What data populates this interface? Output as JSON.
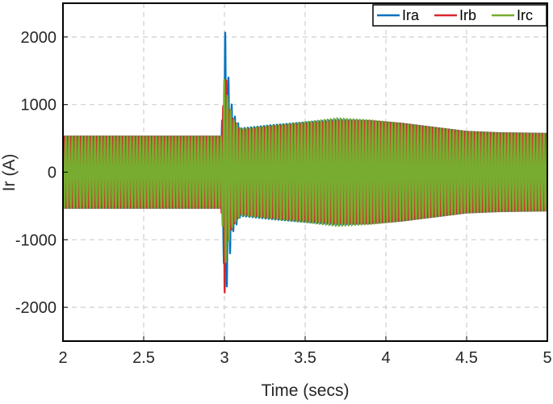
{
  "chart_data": {
    "type": "line",
    "xlabel": "Time (secs)",
    "ylabel": "Ir (A)",
    "xlim": [
      2,
      5
    ],
    "ylim": [
      -2500,
      2500
    ],
    "x_ticks": [
      2,
      2.5,
      3,
      3.5,
      4,
      4.5,
      5
    ],
    "x_tick_labels": [
      "2",
      "2.5",
      "3",
      "3.5",
      "4",
      "4.5",
      "5"
    ],
    "y_ticks": [
      -2000,
      -1000,
      0,
      1000,
      2000
    ],
    "y_tick_labels": [
      "-2000",
      "-1000",
      "0",
      "1000",
      "2000"
    ],
    "grid": true,
    "legend_position": "top-right",
    "legend_orientation": "horizontal",
    "frequency_hz": 50,
    "series": [
      {
        "name": "Ira",
        "color": "#0072BD",
        "phase_deg": 0,
        "envelope": {
          "x": [
            2.0,
            2.98,
            2.995,
            3.0,
            3.02,
            3.05,
            3.1,
            3.3,
            3.5,
            3.7,
            3.9,
            4.1,
            4.3,
            4.5,
            4.7,
            5.0
          ],
          "amplitude": [
            530,
            530,
            1200,
            2250,
            1500,
            900,
            650,
            700,
            740,
            780,
            760,
            720,
            660,
            600,
            580,
            570
          ]
        }
      },
      {
        "name": "Irb",
        "color": "#D9262E",
        "phase_deg": -120,
        "envelope": {
          "x": [
            2.0,
            2.98,
            2.995,
            3.0,
            3.02,
            3.05,
            3.1,
            3.3,
            3.5,
            3.7,
            3.9,
            4.1,
            4.3,
            4.5,
            4.7,
            5.0
          ],
          "amplitude": [
            530,
            530,
            1100,
            1850,
            1000,
            800,
            620,
            680,
            720,
            760,
            760,
            720,
            660,
            600,
            580,
            570
          ]
        }
      },
      {
        "name": "Irc",
        "color": "#77AC30",
        "phase_deg": 120,
        "envelope": {
          "x": [
            2.0,
            2.98,
            2.995,
            3.0,
            3.02,
            3.05,
            3.1,
            3.3,
            3.5,
            3.7,
            3.9,
            4.1,
            4.3,
            4.5,
            4.7,
            5.0
          ],
          "amplitude": [
            530,
            530,
            1000,
            1500,
            1100,
            800,
            640,
            690,
            740,
            800,
            770,
            720,
            660,
            600,
            580,
            570
          ]
        }
      }
    ]
  }
}
